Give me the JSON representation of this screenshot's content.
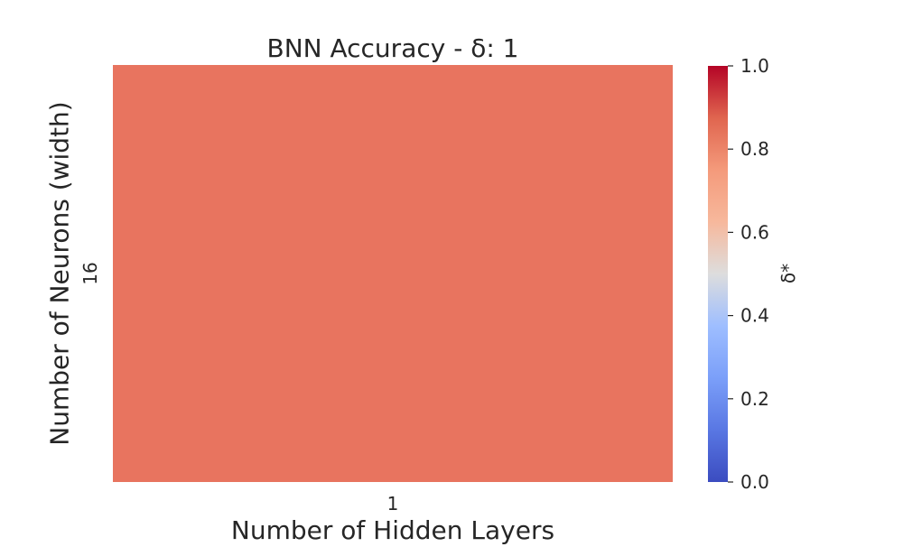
{
  "chart_data": {
    "type": "heatmap",
    "title": "BNN Accuracy - δ: 1",
    "xlabel": "Number of Hidden Layers",
    "ylabel": "Number of Neurons (width)",
    "x_categories": [
      "1"
    ],
    "y_categories": [
      "16"
    ],
    "values": [
      [
        0.82
      ]
    ],
    "colormap": "coolwarm",
    "cell_color": "#E8745F",
    "colorbar": {
      "label": "δ*",
      "range": [
        0.0,
        1.0
      ],
      "ticks": [
        "0.0",
        "0.2",
        "0.4",
        "0.6",
        "0.8",
        "1.0"
      ]
    }
  }
}
